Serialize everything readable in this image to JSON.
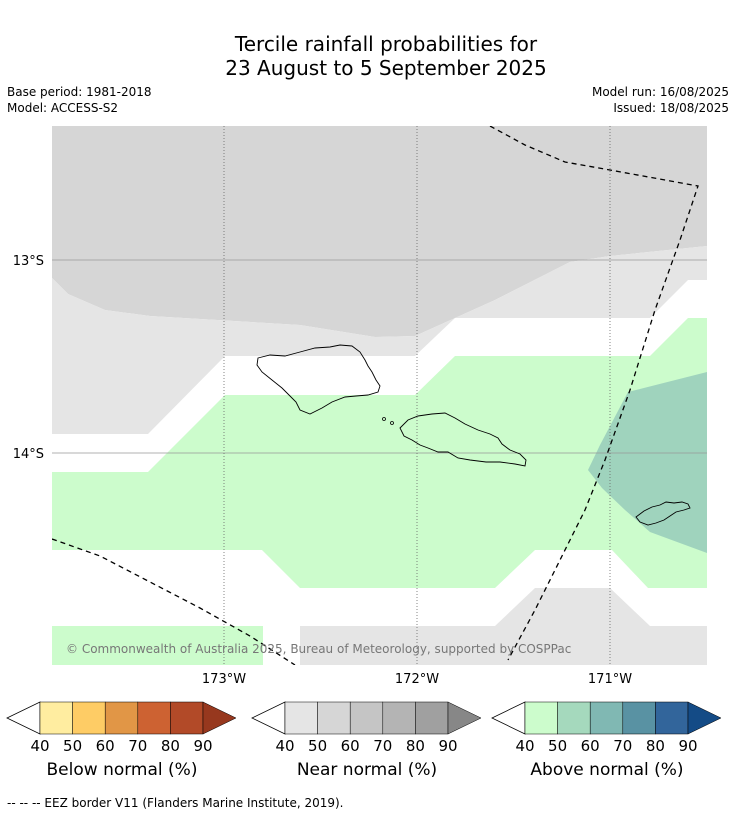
{
  "title": {
    "line1": "Tercile rainfall probabilities for",
    "line2": "23 August to 5 September 2025"
  },
  "meta": {
    "base_period": "Base period: 1981-2018",
    "model": "Model: ACCESS-S2",
    "model_run": "Model run: 16/08/2025",
    "issued": "Issued: 18/08/2025"
  },
  "map": {
    "lat_labels": [
      "13°S",
      "14°S"
    ],
    "lon_labels": [
      "173°W",
      "172°W",
      "171°W"
    ],
    "copyright": "© Commonwealth of Australia 2025, Bureau of Meteorology, supported by COSPPac",
    "colors": {
      "near_60": "#d6d6d6",
      "near_50": "#e5e5e5",
      "above_50": "#ccfccc",
      "above_60": "#9fd3bd"
    }
  },
  "colorbars": [
    {
      "label": "Below normal (%)",
      "ticks": [
        "40",
        "50",
        "60",
        "70",
        "80",
        "90"
      ],
      "colors": [
        "#ffeda0",
        "#fecc65",
        "#e19646",
        "#cd6232",
        "#b24a28",
        "#97381e"
      ]
    },
    {
      "label": "Near normal (%)",
      "ticks": [
        "40",
        "50",
        "60",
        "70",
        "80",
        "90"
      ],
      "colors": [
        "#e5e5e5",
        "#d6d6d6",
        "#c5c5c5",
        "#b4b4b4",
        "#a0a0a0",
        "#878787"
      ]
    },
    {
      "label": "Above normal (%)",
      "ticks": [
        "40",
        "50",
        "60",
        "70",
        "80",
        "90"
      ],
      "colors": [
        "#ccfccc",
        "#a5d9bd",
        "#80b8b3",
        "#5992a3",
        "#32659b",
        "#144b86"
      ]
    }
  ],
  "footnote": "-- -- -- EEZ border V11 (Flanders Marine Institute, 2019)."
}
